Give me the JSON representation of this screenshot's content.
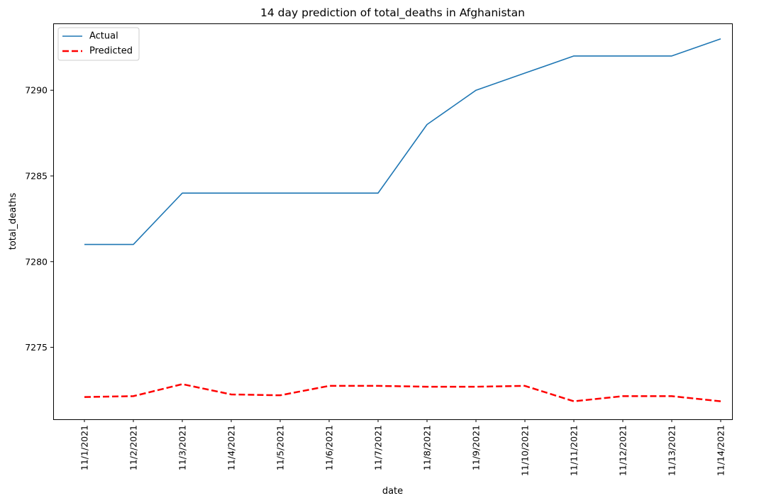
{
  "chart_data": {
    "type": "line",
    "title": "14 day prediction of total_deaths in Afghanistan",
    "xlabel": "date",
    "ylabel": "total_deaths",
    "categories": [
      "11/1/2021",
      "11/2/2021",
      "11/3/2021",
      "11/4/2021",
      "11/5/2021",
      "11/6/2021",
      "11/7/2021",
      "11/8/2021",
      "11/9/2021",
      "11/10/2021",
      "11/11/2021",
      "11/12/2021",
      "11/13/2021",
      "11/14/2021"
    ],
    "ylim": [
      7270.8,
      7293.9
    ],
    "yticks": [
      7275,
      7280,
      7285,
      7290
    ],
    "legend_position": "top-left",
    "grid": false,
    "series": [
      {
        "name": "Actual",
        "color": "#1f77b4",
        "style": "solid",
        "values": [
          7281,
          7281,
          7284,
          7284,
          7284,
          7284,
          7284,
          7288,
          7290,
          7291,
          7292,
          7292,
          7292,
          7293
        ]
      },
      {
        "name": "Predicted",
        "color": "#ff0000",
        "style": "dashed",
        "values": [
          7272.1,
          7272.15,
          7272.85,
          7272.25,
          7272.2,
          7272.75,
          7272.75,
          7272.7,
          7272.7,
          7272.75,
          7271.85,
          7272.15,
          7272.15,
          7271.85
        ]
      }
    ]
  }
}
